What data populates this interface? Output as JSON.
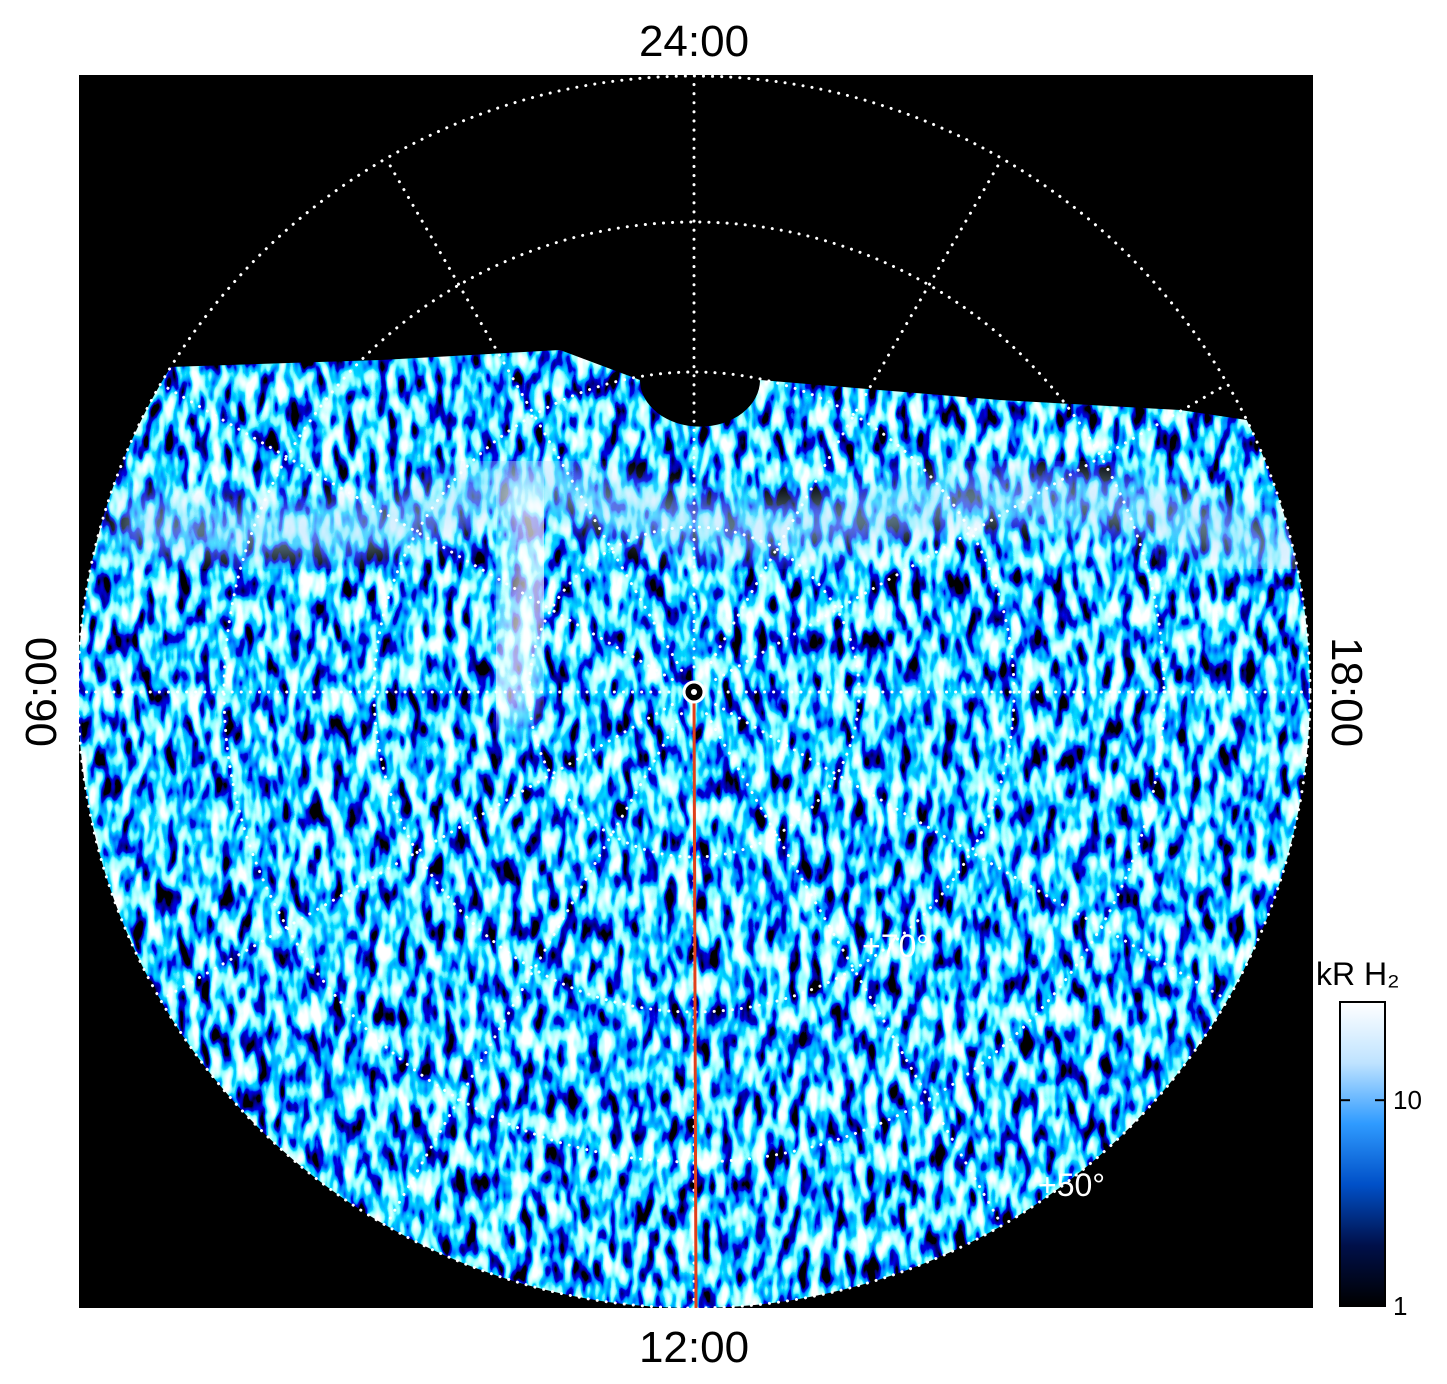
{
  "chart_data": {
    "type": "polar-image",
    "local_time_labels": {
      "top": "24:00",
      "left": "06:00",
      "right": "18:00",
      "bottom": "12:00"
    },
    "latitude_labels": [
      "+70°",
      "+50°"
    ],
    "colorbar": {
      "title": "kR H₂",
      "log": true,
      "ylim": [
        1,
        30
      ],
      "yticks": [
        1,
        10
      ],
      "colors": [
        "#000000",
        "#00104a",
        "#0050c8",
        "#2f9bff",
        "#bfe3ff",
        "#ffffff"
      ]
    },
    "meridian_color": "#e0401a"
  }
}
